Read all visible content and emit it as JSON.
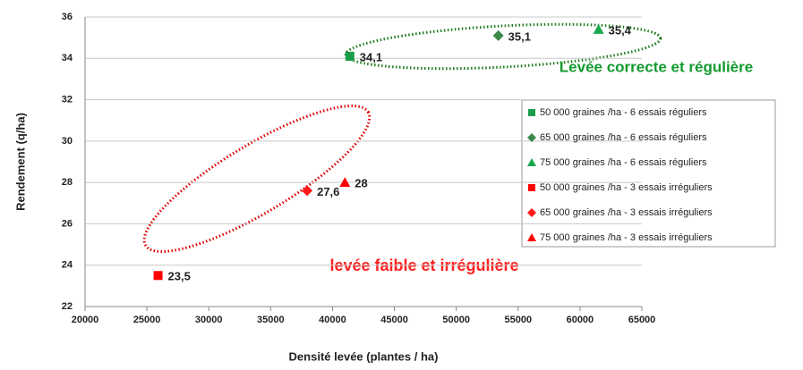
{
  "chart_data": {
    "type": "scatter",
    "xlabel": "Densité levée (plantes / ha)",
    "ylabel": "Rendement (q/ha)",
    "annotations": [
      "Levée correcte et régulière",
      "levée faible et irrégulière"
    ],
    "xlim": [
      20000,
      65000
    ],
    "xticks": [
      20000,
      25000,
      30000,
      35000,
      40000,
      45000,
      50000,
      55000,
      60000,
      65000
    ],
    "ylim": [
      22,
      36
    ],
    "yticks": [
      22,
      24,
      26,
      28,
      30,
      32,
      34,
      36
    ],
    "grid": true,
    "legend": "right",
    "series": [
      {
        "name": "50 000 graines /ha - 6 essais réguliers",
        "color": "#1a9e4a",
        "marker": "square",
        "x": [
          41400
        ],
        "values": [
          34.1
        ],
        "value_labels": [
          "34,1"
        ]
      },
      {
        "name": "65 000 graines /ha - 6 essais réguliers",
        "color": "#3c8a4a",
        "marker": "diamond",
        "x": [
          53400
        ],
        "values": [
          35.1
        ],
        "value_labels": [
          "35,1"
        ]
      },
      {
        "name": "75 000 graines /ha - 6 essais réguliers",
        "color": "#1aa84e",
        "marker": "triangle",
        "x": [
          61500
        ],
        "values": [
          35.4
        ],
        "value_labels": [
          "35,4"
        ]
      },
      {
        "name": "50 000 graines /ha - 3 essais irréguliers",
        "color": "#ff0000",
        "marker": "square",
        "x": [
          25900
        ],
        "values": [
          23.5
        ],
        "value_labels": [
          "23,5"
        ]
      },
      {
        "name": "65 000 graines /ha - 3 essais irréguliers",
        "color": "#ff1a1a",
        "marker": "diamond",
        "x": [
          37950
        ],
        "values": [
          27.6
        ],
        "value_labels": [
          "27,6"
        ]
      },
      {
        "name": "75 000 graines /ha - 3 essais irréguliers",
        "color": "#ff0000",
        "marker": "triangle",
        "x": [
          41000
        ],
        "values": [
          28
        ]
      }
    ]
  }
}
